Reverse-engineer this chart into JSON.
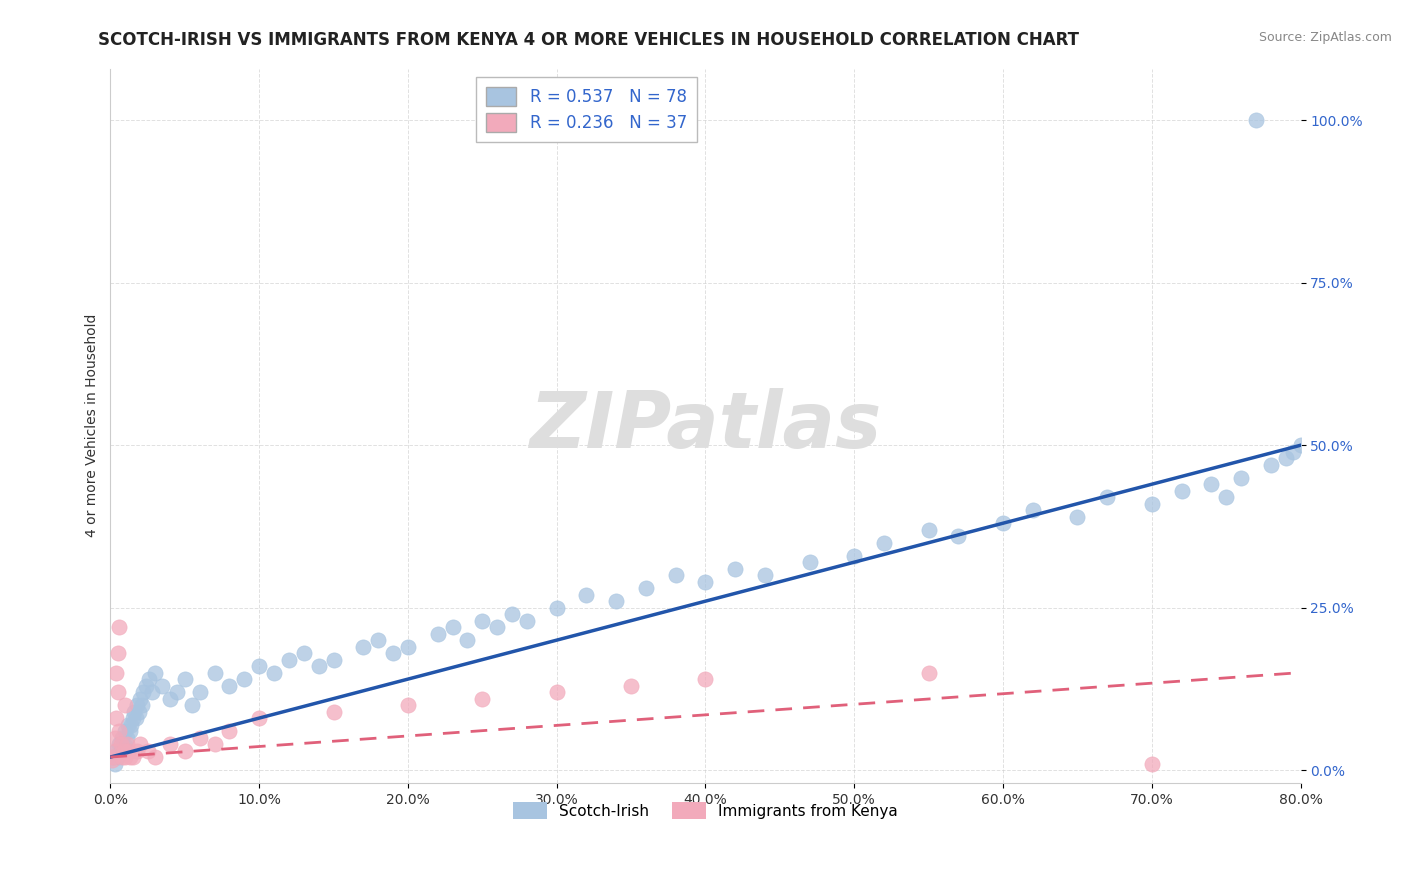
{
  "title": "SCOTCH-IRISH VS IMMIGRANTS FROM KENYA 4 OR MORE VEHICLES IN HOUSEHOLD CORRELATION CHART",
  "source": "Source: ZipAtlas.com",
  "ylabel": "4 or more Vehicles in Household",
  "xlim": [
    0.0,
    80.0
  ],
  "ylim": [
    -2.0,
    108.0
  ],
  "xticks": [
    0.0,
    10.0,
    20.0,
    30.0,
    40.0,
    50.0,
    60.0,
    70.0,
    80.0
  ],
  "yticks": [
    0.0,
    25.0,
    50.0,
    75.0,
    100.0
  ],
  "series1_label": "Scotch-Irish",
  "series2_label": "Immigrants from Kenya",
  "series1_color": "#A8C4E0",
  "series2_color": "#F2AABB",
  "series1_line_color": "#2255AA",
  "series2_line_color": "#E0607A",
  "series1_R": 0.537,
  "series1_N": 78,
  "series2_R": 0.236,
  "series2_N": 37,
  "legend_text_color": "#3366CC",
  "title_fontsize": 12,
  "axis_label_fontsize": 10,
  "tick_fontsize": 10,
  "background_color": "#FFFFFF",
  "grid_color": "#CCCCCC",
  "trend1_x0": 0.0,
  "trend1_y0": 2.0,
  "trend1_x1": 80.0,
  "trend1_y1": 50.0,
  "trend2_x0": 0.0,
  "trend2_y0": 2.0,
  "trend2_x1": 80.0,
  "trend2_y1": 15.0,
  "watermark": "ZIPatlas",
  "watermark_color": "#DDDDDD",
  "s1_x": [
    0.2,
    0.3,
    0.4,
    0.5,
    0.6,
    0.7,
    0.8,
    0.9,
    1.0,
    1.1,
    1.2,
    1.3,
    1.4,
    1.5,
    1.6,
    1.7,
    1.8,
    1.9,
    2.0,
    2.1,
    2.2,
    2.4,
    2.6,
    2.8,
    3.0,
    3.5,
    4.0,
    4.5,
    5.0,
    5.5,
    6.0,
    7.0,
    8.0,
    9.0,
    10.0,
    11.0,
    12.0,
    13.0,
    14.0,
    15.0,
    17.0,
    18.0,
    19.0,
    20.0,
    22.0,
    23.0,
    24.0,
    25.0,
    26.0,
    27.0,
    28.0,
    30.0,
    32.0,
    34.0,
    36.0,
    38.0,
    40.0,
    42.0,
    44.0,
    47.0,
    50.0,
    52.0,
    55.0,
    57.0,
    60.0,
    62.0,
    65.0,
    67.0,
    70.0,
    72.0,
    74.0,
    76.0,
    78.0,
    79.0,
    79.5,
    80.0,
    77.0,
    75.0
  ],
  "s1_y": [
    2.0,
    1.0,
    3.0,
    2.0,
    4.0,
    3.0,
    5.0,
    4.0,
    6.0,
    5.0,
    7.0,
    6.0,
    7.0,
    8.0,
    9.0,
    8.0,
    10.0,
    9.0,
    11.0,
    10.0,
    12.0,
    13.0,
    14.0,
    12.0,
    15.0,
    13.0,
    11.0,
    12.0,
    14.0,
    10.0,
    12.0,
    15.0,
    13.0,
    14.0,
    16.0,
    15.0,
    17.0,
    18.0,
    16.0,
    17.0,
    19.0,
    20.0,
    18.0,
    19.0,
    21.0,
    22.0,
    20.0,
    23.0,
    22.0,
    24.0,
    23.0,
    25.0,
    27.0,
    26.0,
    28.0,
    30.0,
    29.0,
    31.0,
    30.0,
    32.0,
    33.0,
    35.0,
    37.0,
    36.0,
    38.0,
    40.0,
    39.0,
    42.0,
    41.0,
    43.0,
    44.0,
    45.0,
    47.0,
    48.0,
    49.0,
    50.0,
    100.0,
    42.0
  ],
  "s2_x": [
    0.1,
    0.2,
    0.3,
    0.3,
    0.4,
    0.4,
    0.5,
    0.5,
    0.6,
    0.6,
    0.7,
    0.8,
    0.9,
    1.0,
    1.0,
    1.1,
    1.2,
    1.3,
    1.5,
    1.8,
    2.0,
    2.5,
    3.0,
    4.0,
    5.0,
    6.0,
    7.0,
    8.0,
    10.0,
    15.0,
    20.0,
    25.0,
    30.0,
    35.0,
    40.0,
    55.0,
    70.0
  ],
  "s2_y": [
    1.5,
    2.0,
    3.0,
    5.0,
    8.0,
    15.0,
    12.0,
    18.0,
    22.0,
    6.0,
    4.0,
    2.0,
    3.0,
    2.0,
    10.0,
    4.0,
    3.0,
    2.0,
    2.0,
    3.0,
    4.0,
    3.0,
    2.0,
    4.0,
    3.0,
    5.0,
    4.0,
    6.0,
    8.0,
    9.0,
    10.0,
    11.0,
    12.0,
    13.0,
    14.0,
    15.0,
    1.0
  ]
}
